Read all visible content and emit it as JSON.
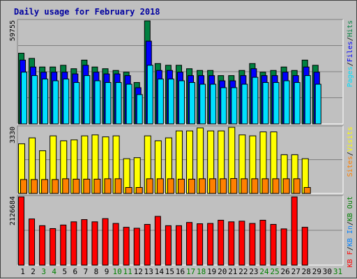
{
  "chart_data": {
    "type": "bar",
    "title": "Daily usage for February 2018",
    "days": [
      "1",
      "2",
      "3",
      "4",
      "5",
      "6",
      "7",
      "8",
      "9",
      "10",
      "11",
      "12",
      "13",
      "14",
      "15",
      "16",
      "17",
      "18",
      "19",
      "20",
      "21",
      "22",
      "23",
      "24",
      "25",
      "26",
      "27",
      "28",
      "29",
      "30",
      "31"
    ],
    "weekend_days": [
      "3",
      "4",
      "10",
      "11",
      "17",
      "18",
      "24",
      "25",
      "31"
    ],
    "colors": {
      "hits": "#008040",
      "files": "#0000ff",
      "pages": "#00e0ff",
      "visits": "#ffff00",
      "sites": "#ff8000",
      "kbin": "#0080ff",
      "kbout": "#008000",
      "kbf": "#ff0000",
      "weekday_tick": "#000000",
      "weekend_tick": "#008000",
      "panel_bg": "#c0c0c0",
      "plot_bg": "#c0c0c0"
    },
    "panel_hits": {
      "max_label": "59755",
      "ymax": 59755,
      "legend": {
        "pages": "Pages",
        "sep1": "/",
        "files": "Files",
        "sep2": "/",
        "hits": "Hits"
      },
      "hits": [
        41000,
        38000,
        33000,
        33000,
        34000,
        32000,
        37000,
        33000,
        32000,
        31000,
        30000,
        24000,
        59755,
        35000,
        34000,
        34000,
        32000,
        31000,
        31000,
        28000,
        28000,
        31000,
        35000,
        30000,
        31000,
        33000,
        31000,
        37000,
        34000,
        null,
        null
      ],
      "files": [
        37000,
        33000,
        30000,
        30000,
        30000,
        29000,
        34000,
        30000,
        29000,
        29000,
        28000,
        21000,
        48000,
        31000,
        31000,
        30000,
        28000,
        28000,
        28000,
        25000,
        25000,
        28000,
        32000,
        28000,
        28000,
        30000,
        28000,
        33000,
        30000,
        null,
        null
      ],
      "pages": [
        30000,
        28000,
        26000,
        25000,
        26000,
        24000,
        28000,
        25000,
        24000,
        24000,
        23000,
        17000,
        34000,
        26000,
        26000,
        25000,
        24000,
        23000,
        23000,
        21000,
        21000,
        23000,
        27000,
        24000,
        24000,
        25000,
        24000,
        28000,
        23000,
        null,
        null
      ]
    },
    "panel_visits": {
      "max_label": "3330",
      "ymax": 3330,
      "legend": {
        "sites": "Sites",
        "sep": "/",
        "visits": "Visits"
      },
      "visits": [
        2500,
        2800,
        2150,
        2900,
        2650,
        2700,
        2900,
        2950,
        2850,
        2900,
        1750,
        1800,
        2900,
        2650,
        2800,
        3150,
        3150,
        3300,
        3150,
        3150,
        3330,
        2950,
        2900,
        3100,
        3100,
        1950,
        1950,
        1750,
        null,
        null,
        null
      ],
      "sites": [
        700,
        700,
        700,
        700,
        740,
        720,
        720,
        720,
        740,
        740,
        300,
        300,
        740,
        740,
        740,
        720,
        720,
        740,
        740,
        740,
        750,
        740,
        740,
        740,
        740,
        740,
        740,
        300,
        null,
        null,
        null
      ]
    },
    "panel_kbytes": {
      "max_label": "2126684",
      "ymax": 2126684,
      "legend": {
        "kbf": "KB F",
        "sep1": "/",
        "kbin": "KB In",
        "sep2": "/",
        "kbout": "KB Out"
      },
      "kbf": [
        2126684,
        1440000,
        1230000,
        1140000,
        1250000,
        1350000,
        1420000,
        1350000,
        1450000,
        1300000,
        1180000,
        1150000,
        1270000,
        1520000,
        1230000,
        1230000,
        1330000,
        1290000,
        1300000,
        1400000,
        1350000,
        1370000,
        1300000,
        1400000,
        1270000,
        1130000,
        2126684,
        1180000,
        null,
        null,
        null
      ]
    }
  }
}
